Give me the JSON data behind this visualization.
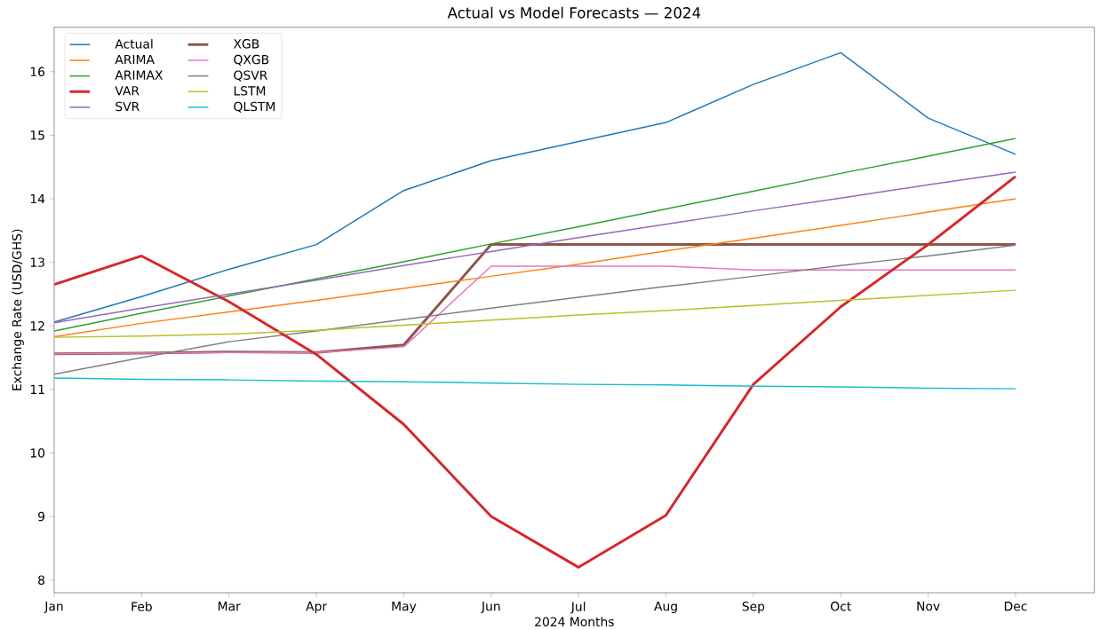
{
  "chart_data": {
    "type": "line",
    "title": "Actual vs Model Forecasts — 2024",
    "xlabel": "2024 Months",
    "ylabel": "Exchange Rate (USD/GHS)",
    "categories": [
      "Jan",
      "Feb",
      "Mar",
      "Apr",
      "May",
      "Jun",
      "Jul",
      "Aug",
      "Sep",
      "Oct",
      "Nov",
      "Dec"
    ],
    "ylim": [
      7.8,
      16.7
    ],
    "yticks": [
      8,
      9,
      10,
      11,
      12,
      13,
      14,
      15,
      16
    ],
    "legend": "top left",
    "series": [
      {
        "name": "Actual",
        "color": "#1f77b4",
        "values": [
          12.06,
          12.46,
          12.89,
          13.28,
          14.13,
          14.6,
          14.9,
          15.2,
          15.8,
          16.3,
          15.27,
          14.7
        ]
      },
      {
        "name": "ARIMA",
        "color": "#ff7f0e",
        "values": [
          11.83,
          12.04,
          12.22,
          12.4,
          12.59,
          12.78,
          12.97,
          13.18,
          13.38,
          13.58,
          13.79,
          14.0
        ]
      },
      {
        "name": "ARIMAX",
        "color": "#2ca02c",
        "values": [
          11.92,
          12.2,
          12.47,
          12.74,
          13.01,
          13.29,
          13.56,
          13.84,
          14.12,
          14.4,
          14.67,
          14.95
        ]
      },
      {
        "name": "VAR",
        "color": "#d62728",
        "values": [
          12.65,
          13.1,
          12.38,
          11.55,
          10.45,
          9.0,
          8.2,
          9.02,
          11.08,
          12.3,
          13.28,
          14.35
        ]
      },
      {
        "name": "SVR",
        "color": "#9467bd",
        "values": [
          12.05,
          12.28,
          12.5,
          12.72,
          12.95,
          13.17,
          13.39,
          13.6,
          13.81,
          14.01,
          14.22,
          14.42
        ]
      },
      {
        "name": "XGB",
        "color": "#8c564b",
        "values": [
          11.56,
          11.57,
          11.59,
          11.58,
          11.7,
          13.28,
          13.28,
          13.28,
          13.28,
          13.28,
          13.28,
          13.28
        ]
      },
      {
        "name": "QXGB",
        "color": "#e377c2",
        "values": [
          11.56,
          11.57,
          11.58,
          11.58,
          11.67,
          12.94,
          12.94,
          12.94,
          12.88,
          12.88,
          12.88,
          12.88
        ]
      },
      {
        "name": "QSVR",
        "color": "#7f7f7f",
        "values": [
          11.24,
          11.5,
          11.75,
          11.92,
          12.1,
          12.28,
          12.45,
          12.62,
          12.78,
          12.95,
          13.1,
          13.27
        ]
      },
      {
        "name": "LSTM",
        "color": "#bcbd22",
        "values": [
          11.82,
          11.84,
          11.87,
          11.93,
          12.01,
          12.09,
          12.17,
          12.24,
          12.32,
          12.4,
          12.48,
          12.56
        ]
      },
      {
        "name": "QLSTM",
        "color": "#17becf",
        "values": [
          11.18,
          11.16,
          11.15,
          11.13,
          11.12,
          11.1,
          11.08,
          11.07,
          11.05,
          11.04,
          11.02,
          11.01
        ]
      }
    ]
  }
}
